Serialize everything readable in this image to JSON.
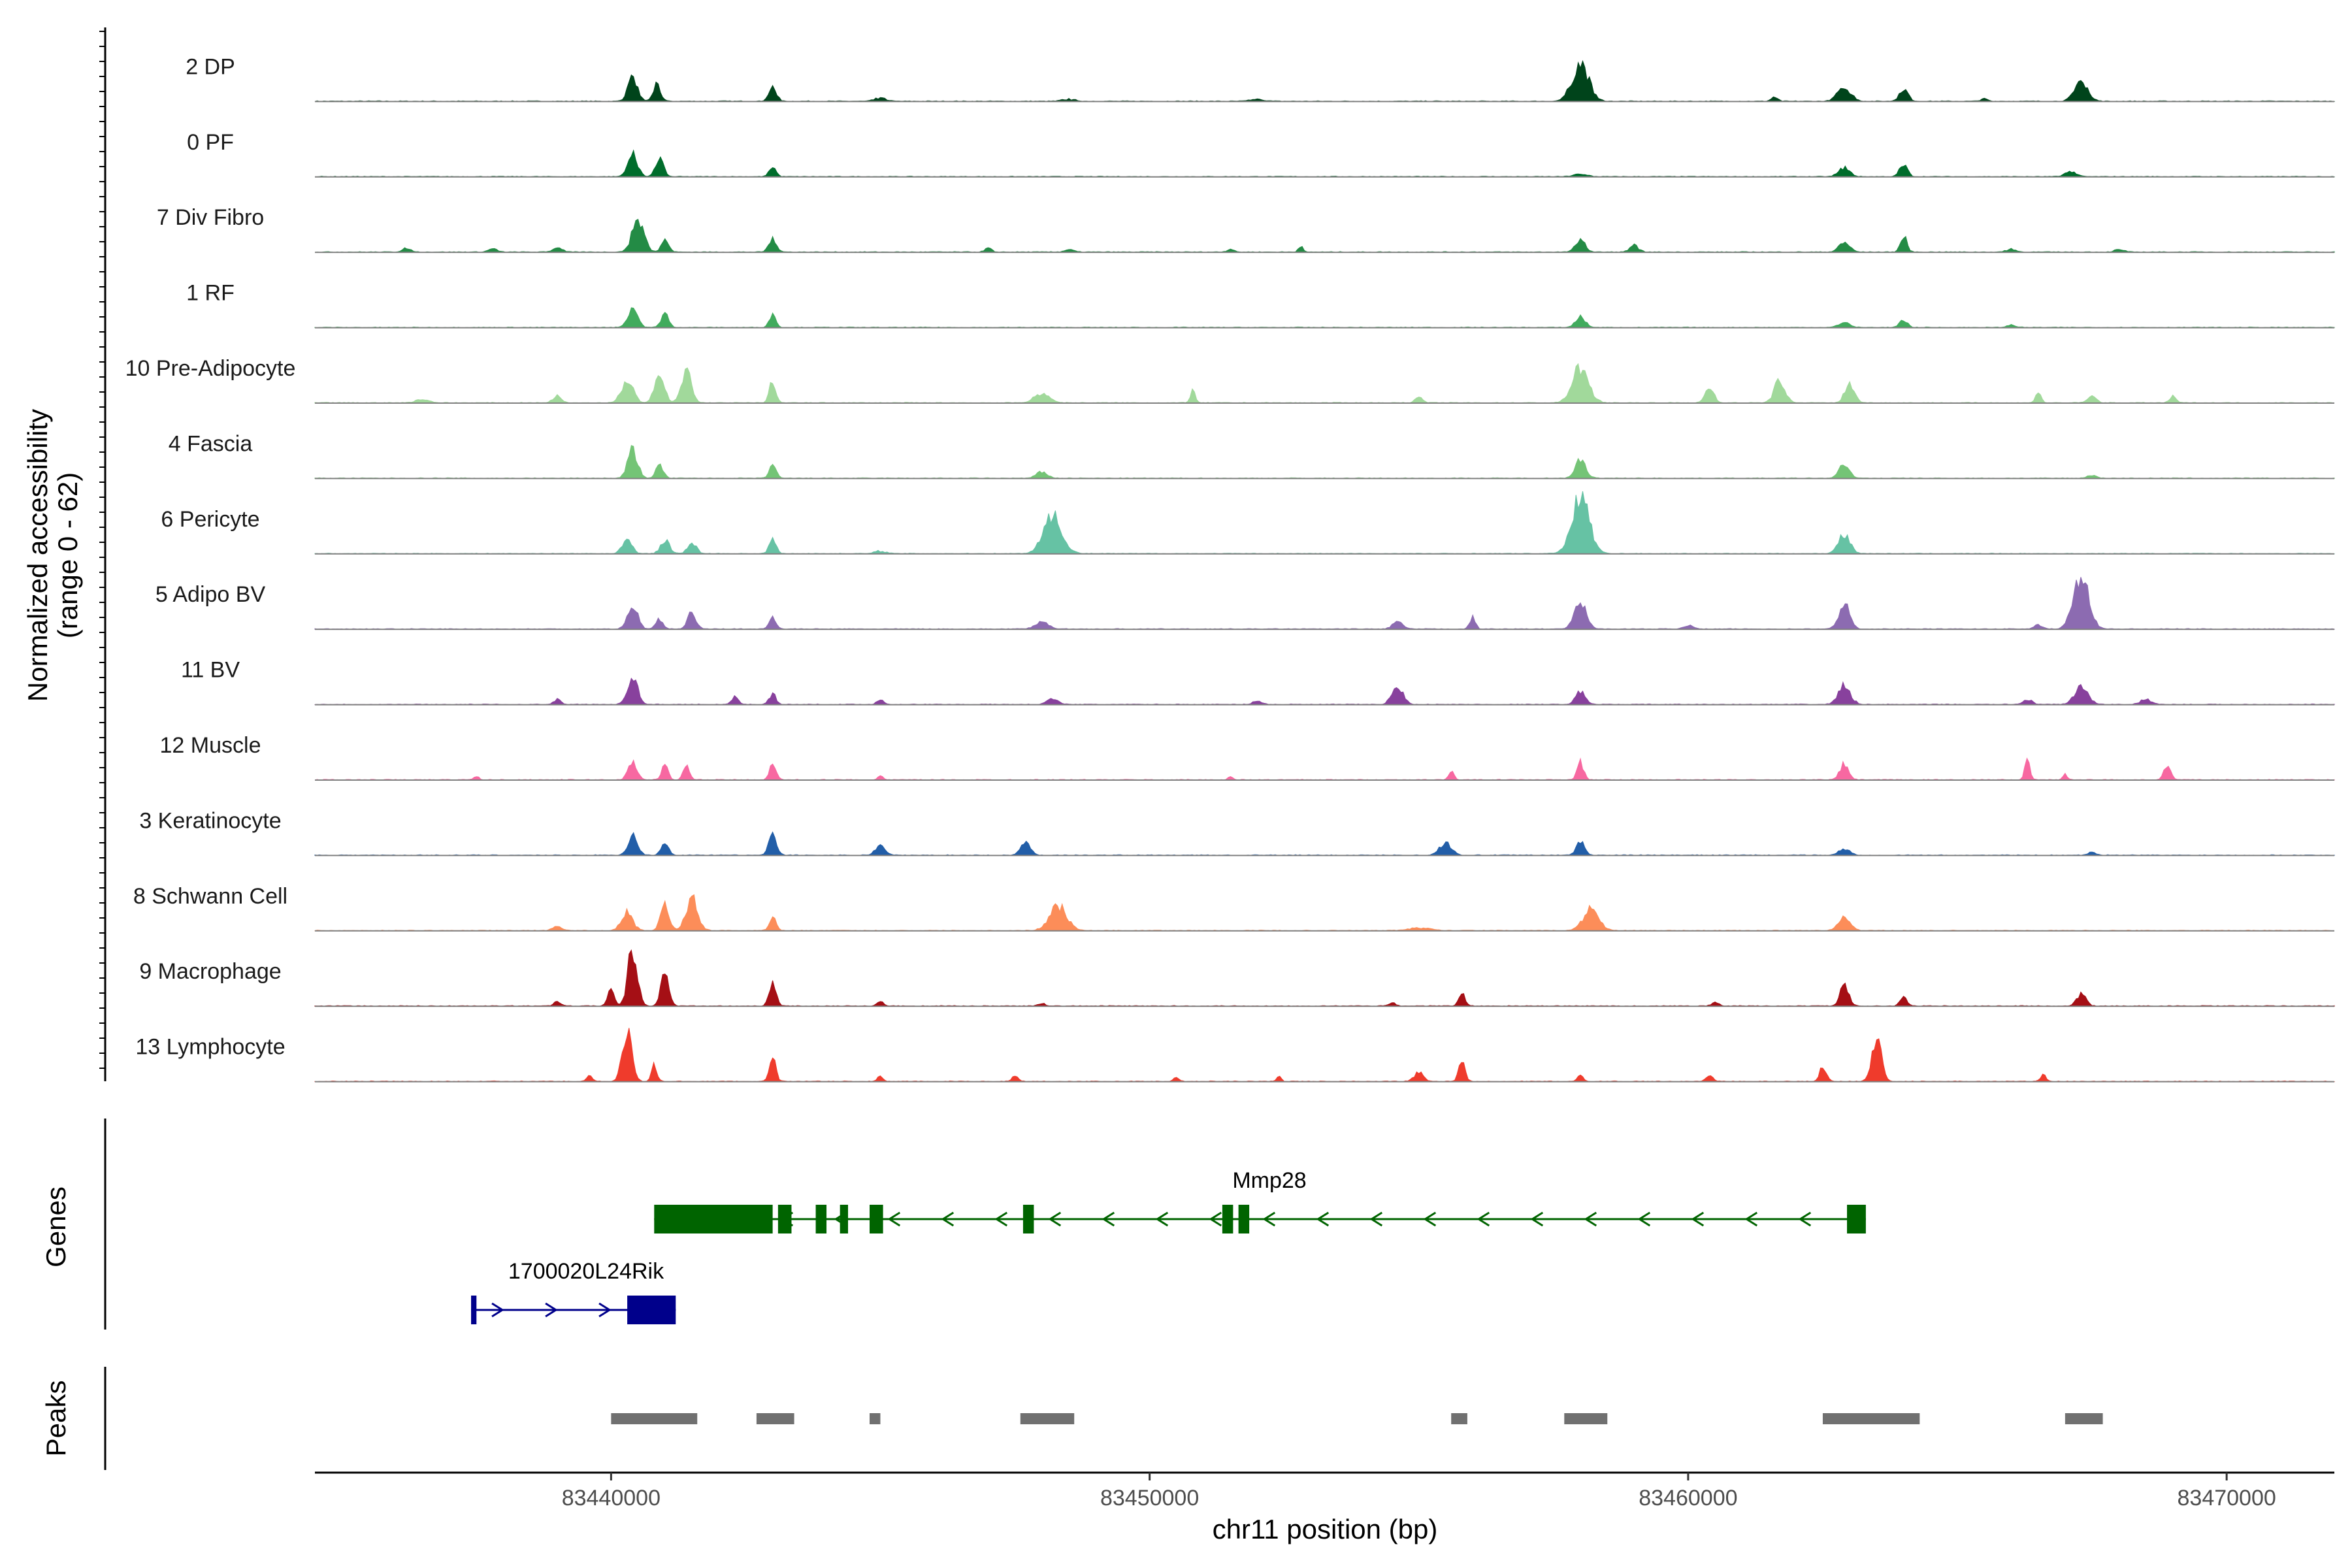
{
  "chart_data": {
    "type": "area",
    "ylabel": "Normalized accessibility",
    "ylabel_range": "(range 0 - 62)",
    "ylim": [
      0,
      62
    ],
    "xlabel": "chr11 position (bp)",
    "xlim": [
      83434500,
      83472000
    ],
    "xticks": [
      83440000,
      83450000,
      83460000,
      83470000
    ],
    "xtick_labels": [
      "83440000",
      "83450000",
      "83460000",
      "83470000"
    ],
    "tracks": [
      {
        "name": "2 DP",
        "color": "#00441b",
        "peaks": [
          [
            83440400,
            0.35,
            90
          ],
          [
            83440850,
            0.25,
            70
          ],
          [
            83443000,
            0.22,
            70
          ],
          [
            83445000,
            0.05,
            100
          ],
          [
            83458000,
            0.6,
            150
          ],
          [
            83462900,
            0.22,
            120
          ],
          [
            83464000,
            0.2,
            80
          ],
          [
            83467300,
            0.33,
            120
          ],
          [
            83461600,
            0.06,
            60
          ],
          [
            83465500,
            0.04,
            60
          ],
          [
            83448500,
            0.03,
            120
          ],
          [
            83452000,
            0.03,
            120
          ]
        ]
      },
      {
        "name": "0 PF",
        "color": "#006d2c",
        "peaks": [
          [
            83440400,
            0.35,
            90
          ],
          [
            83440900,
            0.3,
            70
          ],
          [
            83443000,
            0.17,
            60
          ],
          [
            83462900,
            0.14,
            100
          ],
          [
            83464000,
            0.2,
            70
          ],
          [
            83467100,
            0.08,
            100
          ],
          [
            83458000,
            0.04,
            120
          ]
        ]
      },
      {
        "name": "7 Div Fibro",
        "color": "#238b45",
        "peaks": [
          [
            83440500,
            0.5,
            110
          ],
          [
            83441000,
            0.2,
            70
          ],
          [
            83443000,
            0.22,
            70
          ],
          [
            83436200,
            0.06,
            80
          ],
          [
            83437800,
            0.05,
            80
          ],
          [
            83439000,
            0.08,
            80
          ],
          [
            83447000,
            0.06,
            60
          ],
          [
            83448500,
            0.04,
            80
          ],
          [
            83451500,
            0.05,
            60
          ],
          [
            83452800,
            0.1,
            40
          ],
          [
            83458000,
            0.18,
            90
          ],
          [
            83459000,
            0.1,
            80
          ],
          [
            83462900,
            0.15,
            100
          ],
          [
            83464000,
            0.25,
            60
          ],
          [
            83466000,
            0.05,
            80
          ],
          [
            83468000,
            0.04,
            80
          ]
        ]
      },
      {
        "name": "1 RF",
        "color": "#41ab5d",
        "peaks": [
          [
            83440400,
            0.32,
            90
          ],
          [
            83441000,
            0.22,
            70
          ],
          [
            83443000,
            0.22,
            60
          ],
          [
            83458000,
            0.17,
            90
          ],
          [
            83462900,
            0.08,
            100
          ],
          [
            83464000,
            0.12,
            70
          ],
          [
            83466000,
            0.04,
            80
          ]
        ]
      },
      {
        "name": "10 Pre-Adipocyte",
        "color": "#a1d99b",
        "peaks": [
          [
            83440300,
            0.35,
            110
          ],
          [
            83440900,
            0.48,
            90
          ],
          [
            83441400,
            0.5,
            90
          ],
          [
            83443000,
            0.35,
            60
          ],
          [
            83436500,
            0.06,
            120
          ],
          [
            83439000,
            0.12,
            80
          ],
          [
            83448000,
            0.15,
            140
          ],
          [
            83450800,
            0.25,
            40
          ],
          [
            83455000,
            0.12,
            60
          ],
          [
            83458000,
            0.55,
            150
          ],
          [
            83460400,
            0.25,
            80
          ],
          [
            83461700,
            0.35,
            100
          ],
          [
            83463000,
            0.3,
            90
          ],
          [
            83466500,
            0.18,
            50
          ],
          [
            83467500,
            0.1,
            80
          ],
          [
            83469000,
            0.1,
            60
          ]
        ]
      },
      {
        "name": "4 Fascia",
        "color": "#74c476",
        "peaks": [
          [
            83440400,
            0.45,
            90
          ],
          [
            83440900,
            0.2,
            70
          ],
          [
            83443000,
            0.22,
            60
          ],
          [
            83448000,
            0.1,
            100
          ],
          [
            83458000,
            0.28,
            100
          ],
          [
            83462900,
            0.24,
            90
          ],
          [
            83467500,
            0.05,
            80
          ]
        ]
      },
      {
        "name": "6 Pericyte",
        "color": "#66c2a4",
        "peaks": [
          [
            83440300,
            0.22,
            90
          ],
          [
            83441000,
            0.22,
            80
          ],
          [
            83441500,
            0.18,
            80
          ],
          [
            83443000,
            0.25,
            60
          ],
          [
            83448200,
            0.62,
            170
          ],
          [
            83458000,
            0.9,
            160
          ],
          [
            83462900,
            0.3,
            110
          ],
          [
            83445000,
            0.04,
            100
          ]
        ]
      },
      {
        "name": "5 Adipo BV",
        "color": "#8c6bb1",
        "peaks": [
          [
            83440400,
            0.4,
            90
          ],
          [
            83441500,
            0.25,
            80
          ],
          [
            83440900,
            0.15,
            70
          ],
          [
            83443000,
            0.2,
            60
          ],
          [
            83448000,
            0.12,
            120
          ],
          [
            83454600,
            0.12,
            90
          ],
          [
            83456000,
            0.2,
            50
          ],
          [
            83458000,
            0.4,
            110
          ],
          [
            83462900,
            0.4,
            100
          ],
          [
            83467300,
            0.9,
            140
          ],
          [
            83460000,
            0.06,
            90
          ],
          [
            83466500,
            0.06,
            80
          ]
        ]
      },
      {
        "name": "11 BV",
        "color": "#88419d",
        "peaks": [
          [
            83440400,
            0.48,
            90
          ],
          [
            83443000,
            0.18,
            60
          ],
          [
            83442300,
            0.12,
            60
          ],
          [
            83439000,
            0.08,
            60
          ],
          [
            83445000,
            0.08,
            60
          ],
          [
            83448200,
            0.1,
            100
          ],
          [
            83454600,
            0.3,
            100
          ],
          [
            83458000,
            0.2,
            90
          ],
          [
            83462900,
            0.3,
            110
          ],
          [
            83467300,
            0.3,
            120
          ],
          [
            83466300,
            0.08,
            80
          ],
          [
            83468500,
            0.08,
            100
          ],
          [
            83452000,
            0.06,
            80
          ]
        ]
      },
      {
        "name": "12 Muscle",
        "color": "#f768a1",
        "peaks": [
          [
            83440400,
            0.3,
            80
          ],
          [
            83441000,
            0.22,
            60
          ],
          [
            83441400,
            0.2,
            60
          ],
          [
            83443000,
            0.25,
            60
          ],
          [
            83455600,
            0.14,
            50
          ],
          [
            83458000,
            0.28,
            60
          ],
          [
            83462900,
            0.25,
            80
          ],
          [
            83466300,
            0.28,
            50
          ],
          [
            83468900,
            0.25,
            60
          ],
          [
            83437500,
            0.05,
            50
          ],
          [
            83445000,
            0.06,
            50
          ],
          [
            83451500,
            0.05,
            40
          ],
          [
            83467000,
            0.1,
            40
          ]
        ]
      },
      {
        "name": "3 Keratinocyte",
        "color": "#225ea8",
        "peaks": [
          [
            83440400,
            0.3,
            90
          ],
          [
            83441000,
            0.2,
            70
          ],
          [
            83443000,
            0.32,
            70
          ],
          [
            83445000,
            0.15,
            90
          ],
          [
            83447700,
            0.2,
            90
          ],
          [
            83455500,
            0.2,
            110
          ],
          [
            83458000,
            0.2,
            80
          ],
          [
            83462900,
            0.1,
            100
          ],
          [
            83467500,
            0.05,
            80
          ]
        ]
      },
      {
        "name": "8 Schwann Cell",
        "color": "#fc8d59",
        "peaks": [
          [
            83440300,
            0.3,
            100
          ],
          [
            83441000,
            0.4,
            80
          ],
          [
            83441500,
            0.5,
            110
          ],
          [
            83443000,
            0.25,
            60
          ],
          [
            83448300,
            0.4,
            160
          ],
          [
            83458200,
            0.35,
            140
          ],
          [
            83462900,
            0.2,
            110
          ],
          [
            83439000,
            0.08,
            80
          ],
          [
            83455000,
            0.04,
            200
          ]
        ]
      },
      {
        "name": "9 Macrophage",
        "color": "#a50f15",
        "peaks": [
          [
            83440400,
            0.9,
            90
          ],
          [
            83441000,
            0.6,
            70
          ],
          [
            83440000,
            0.3,
            60
          ],
          [
            83443000,
            0.42,
            60
          ],
          [
            83439000,
            0.08,
            60
          ],
          [
            83445000,
            0.08,
            60
          ],
          [
            83448000,
            0.05,
            60
          ],
          [
            83455800,
            0.2,
            60
          ],
          [
            83462900,
            0.32,
            80
          ],
          [
            83464000,
            0.15,
            60
          ],
          [
            83467300,
            0.2,
            80
          ],
          [
            83460500,
            0.06,
            60
          ],
          [
            83454500,
            0.06,
            60
          ]
        ]
      },
      {
        "name": "13 Lymphocyte",
        "color": "#ef3b2c",
        "peaks": [
          [
            83440300,
            0.75,
            90
          ],
          [
            83440800,
            0.25,
            50
          ],
          [
            83443000,
            0.35,
            60
          ],
          [
            83439600,
            0.1,
            50
          ],
          [
            83445000,
            0.08,
            50
          ],
          [
            83447500,
            0.08,
            60
          ],
          [
            83455000,
            0.15,
            80
          ],
          [
            83455800,
            0.3,
            60
          ],
          [
            83458000,
            0.1,
            50
          ],
          [
            83462500,
            0.25,
            60
          ],
          [
            83463500,
            0.7,
            90
          ],
          [
            83466600,
            0.1,
            50
          ],
          [
            83450500,
            0.08,
            40
          ],
          [
            83452400,
            0.08,
            40
          ],
          [
            83460400,
            0.1,
            60
          ]
        ]
      }
    ],
    "genes_title": "Genes",
    "genes": [
      {
        "name": "Mmp28",
        "color": "#006400",
        "strand": "-",
        "start": 83440800,
        "end": 83463300,
        "exons": [
          [
            83440800,
            83443000
          ],
          [
            83443100,
            83443350
          ],
          [
            83443800,
            83444000
          ],
          [
            83444250,
            83444400
          ],
          [
            83444800,
            83445050
          ],
          [
            83447650,
            83447850
          ],
          [
            83451350,
            83451550
          ],
          [
            83451650,
            83451850
          ],
          [
            83462950,
            83463300
          ]
        ]
      },
      {
        "name": "1700020L24Rik",
        "color": "#00008b",
        "strand": "+",
        "start": 83437400,
        "end": 83441200,
        "exons": [
          [
            83437400,
            83437500
          ],
          [
            83440300,
            83441200
          ]
        ]
      }
    ],
    "peaks_title": "Peaks",
    "peak_color": "#707070",
    "peak_regions": [
      [
        83440000,
        83441600
      ],
      [
        83442700,
        83443400
      ],
      [
        83444800,
        83445000
      ],
      [
        83447600,
        83448600
      ],
      [
        83455600,
        83455900
      ],
      [
        83457700,
        83458500
      ],
      [
        83462500,
        83464300
      ],
      [
        83467000,
        83467700
      ]
    ]
  }
}
